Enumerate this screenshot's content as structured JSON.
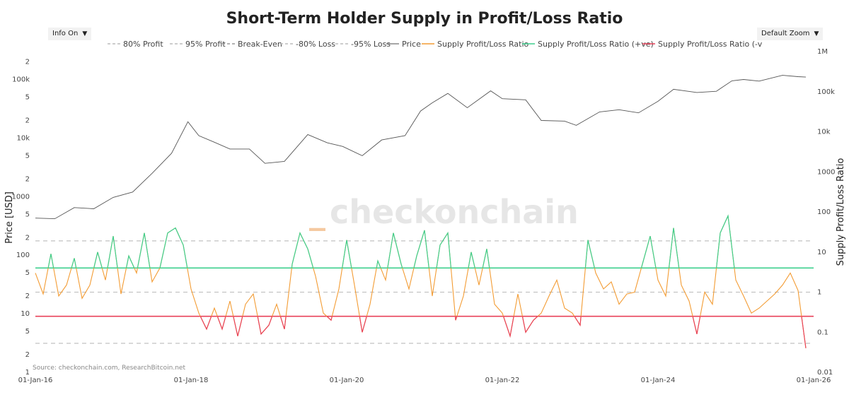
{
  "chart_data": {
    "type": "line",
    "title": "Short-Term Holder Supply in Profit/Loss Ratio",
    "controls": {
      "info_label": "Info On",
      "zoom_label": "Default Zoom",
      "caret": "▼"
    },
    "watermark": {
      "text": "checkonchain",
      "accent": "_"
    },
    "source": "Source: checkonchain.com, ResearchBitcoin.net",
    "x_ticks": [
      "01-Jan-16",
      "01-Jan-18",
      "01-Jan-20",
      "01-Jan-22",
      "01-Jan-24",
      "01-Jan-26"
    ],
    "xlim": [
      2016.0,
      2026.0
    ],
    "left_axis": {
      "label": "Price [USD]",
      "scale": "log",
      "ylim": [
        1,
        300000
      ],
      "ticks": [
        {
          "v": 2,
          "t": "2"
        },
        {
          "v": 5,
          "t": "5"
        },
        {
          "v": 10,
          "t": "10"
        },
        {
          "v": 20,
          "t": "2"
        },
        {
          "v": 50,
          "t": "5"
        },
        {
          "v": 100,
          "t": "100"
        },
        {
          "v": 200,
          "t": "2"
        },
        {
          "v": 500,
          "t": "5"
        },
        {
          "v": 1000,
          "t": "1000"
        },
        {
          "v": 2000,
          "t": "2"
        },
        {
          "v": 5000,
          "t": "5"
        },
        {
          "v": 10000,
          "t": "10k"
        },
        {
          "v": 20000,
          "t": "2"
        },
        {
          "v": 50000,
          "t": "5"
        },
        {
          "v": 100000,
          "t": "100k"
        },
        {
          "v": 200000,
          "t": "2"
        }
      ],
      "bottom_label": "1"
    },
    "right_axis": {
      "label": "Supply Profit/Loss Ratio",
      "scale": "log",
      "ylim": [
        0.01,
        1000000
      ],
      "ticks": [
        {
          "v": 0.01,
          "t": "0.01"
        },
        {
          "v": 0.1,
          "t": "0.1"
        },
        {
          "v": 1,
          "t": "1"
        },
        {
          "v": 10,
          "t": "10"
        },
        {
          "v": 100,
          "t": "100"
        },
        {
          "v": 1000,
          "t": "1000"
        },
        {
          "v": 10000,
          "t": "10k"
        },
        {
          "v": 100000,
          "t": "100k"
        },
        {
          "v": 1000000,
          "t": "1M"
        }
      ]
    },
    "legend": [
      {
        "label": "80% Profit",
        "color": "#bbbbbb",
        "style": "dashed"
      },
      {
        "label": "95% Profit",
        "color": "#bbbbbb",
        "style": "dashed"
      },
      {
        "label": "Break-Even",
        "color": "#999999",
        "style": "dashed"
      },
      {
        "label": "-80% Loss",
        "color": "#bbbbbb",
        "style": "dashed"
      },
      {
        "label": "-95% Loss",
        "color": "#bbbbbb",
        "style": "dashed"
      },
      {
        "label": "Price",
        "color": "#888888",
        "style": "solid"
      },
      {
        "label": "Supply Profit/Loss Ratio",
        "color": "#f39c34",
        "style": "solid"
      },
      {
        "label": "Supply Profit/Loss Ratio (+ve)",
        "color": "#3ecf8e",
        "style": "solid"
      },
      {
        "label": "Supply Profit/Loss Ratio (-v",
        "color": "#e8425a",
        "style": "solid"
      }
    ],
    "reference_lines": [
      {
        "name": "95% Profit",
        "value": 19,
        "color": "#bbbbbb",
        "style": "dashed"
      },
      {
        "name": "80% Profit",
        "value": 4,
        "color": "#3ecf8e",
        "style": "solid"
      },
      {
        "name": "Break-Even",
        "value": 1,
        "color": "#bbbbbb",
        "style": "dashed"
      },
      {
        "name": "-80% Loss",
        "value": 0.25,
        "color": "#e8425a",
        "style": "solid"
      },
      {
        "name": "-95% Loss",
        "value": 0.053,
        "color": "#bbbbbb",
        "style": "dashed"
      }
    ],
    "series": [
      {
        "name": "Price",
        "axis": "left",
        "color": "#555555",
        "x": [
          2016.0,
          2016.25,
          2016.5,
          2016.75,
          2017.0,
          2017.25,
          2017.5,
          2017.75,
          2017.96,
          2018.1,
          2018.3,
          2018.5,
          2018.75,
          2018.95,
          2019.2,
          2019.5,
          2019.75,
          2019.95,
          2020.2,
          2020.45,
          2020.75,
          2020.95,
          2021.1,
          2021.3,
          2021.55,
          2021.85,
          2022.0,
          2022.3,
          2022.5,
          2022.8,
          2022.95,
          2023.25,
          2023.5,
          2023.75,
          2024.0,
          2024.2,
          2024.5,
          2024.75,
          2024.95,
          2025.1,
          2025.3,
          2025.6,
          2025.8,
          2025.9
        ],
        "y": [
          430,
          420,
          650,
          620,
          970,
          1200,
          2500,
          5500,
          19000,
          11000,
          8500,
          6500,
          6500,
          3700,
          4000,
          11500,
          8300,
          7200,
          5000,
          9300,
          11000,
          29000,
          40000,
          58000,
          33000,
          64000,
          47000,
          45000,
          20000,
          19500,
          16500,
          28000,
          30500,
          27000,
          42500,
          68000,
          60000,
          63000,
          95000,
          100000,
          94000,
          118000,
          112000,
          110000
        ]
      },
      {
        "name": "Supply Profit/Loss Ratio",
        "axis": "right",
        "color": "#f39c34",
        "x": [
          2016.0,
          2016.1,
          2016.2,
          2016.3,
          2016.4,
          2016.5,
          2016.6,
          2016.7,
          2016.8,
          2016.9,
          2017.0,
          2017.1,
          2017.2,
          2017.3,
          2017.4,
          2017.5,
          2017.6,
          2017.7,
          2017.8,
          2017.9,
          2018.0,
          2018.1,
          2018.2,
          2018.3,
          2018.4,
          2018.5,
          2018.6,
          2018.7,
          2018.8,
          2018.9,
          2019.0,
          2019.1,
          2019.2,
          2019.3,
          2019.4,
          2019.5,
          2019.6,
          2019.7,
          2019.8,
          2019.9,
          2020.0,
          2020.1,
          2020.2,
          2020.3,
          2020.4,
          2020.5,
          2020.6,
          2020.7,
          2020.8,
          2020.9,
          2021.0,
          2021.1,
          2021.2,
          2021.3,
          2021.4,
          2021.5,
          2021.6,
          2021.7,
          2021.8,
          2021.9,
          2022.0,
          2022.1,
          2022.2,
          2022.3,
          2022.4,
          2022.5,
          2022.6,
          2022.7,
          2022.8,
          2022.9,
          2023.0,
          2023.1,
          2023.2,
          2023.3,
          2023.4,
          2023.5,
          2023.6,
          2023.7,
          2023.8,
          2023.9,
          2024.0,
          2024.1,
          2024.2,
          2024.3,
          2024.4,
          2024.5,
          2024.6,
          2024.7,
          2024.8,
          2024.9,
          2025.0,
          2025.1,
          2025.2,
          2025.3,
          2025.4,
          2025.5,
          2025.6,
          2025.7,
          2025.8,
          2025.9
        ],
        "y": [
          3.0,
          0.9,
          9.0,
          0.8,
          1.5,
          7.0,
          0.7,
          1.5,
          10.0,
          2.0,
          25.0,
          0.9,
          8.0,
          3.0,
          30.0,
          1.8,
          4.0,
          30.0,
          40.0,
          15.0,
          1.2,
          0.3,
          0.12,
          0.4,
          0.12,
          0.6,
          0.08,
          0.5,
          0.9,
          0.09,
          0.15,
          0.5,
          0.12,
          5.0,
          30.0,
          12.0,
          2.5,
          0.3,
          0.2,
          1.2,
          20.0,
          1.5,
          0.1,
          0.5,
          6.0,
          2.0,
          30.0,
          5.0,
          1.2,
          8.0,
          35.0,
          0.8,
          15.0,
          30.0,
          0.2,
          0.8,
          10.0,
          1.5,
          12.0,
          0.5,
          0.3,
          0.08,
          0.9,
          0.1,
          0.2,
          0.3,
          0.8,
          2.0,
          0.4,
          0.3,
          0.15,
          20.0,
          3.0,
          1.2,
          1.8,
          0.5,
          0.9,
          1.0,
          5.0,
          25.0,
          2.0,
          0.8,
          40.0,
          1.5,
          0.6,
          0.09,
          1.0,
          0.5,
          30.0,
          80.0,
          2.0,
          0.8,
          0.3,
          0.4,
          0.6,
          0.9,
          1.5,
          3.0,
          1.1,
          0.04
        ]
      }
    ]
  }
}
